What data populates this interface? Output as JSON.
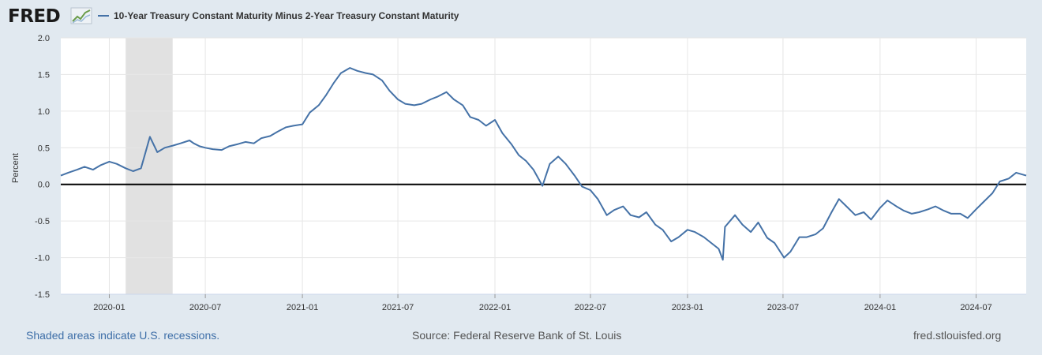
{
  "header": {
    "logo_text": "FRED",
    "logo_icon": "line-graph-icon",
    "legend_label": "10-Year Treasury Constant Maturity Minus 2-Year Treasury Constant Maturity"
  },
  "footer": {
    "recession_note": "Shaded areas indicate U.S. recessions.",
    "source": "Source: Federal Reserve Bank of St. Louis",
    "site": "fred.stlouisfed.org"
  },
  "colors": {
    "page_bg": "#e1e9f0",
    "plot_bg": "#ffffff",
    "series": "#4572a7",
    "recession": "#e1e1e1",
    "zero_line": "#000000",
    "grid": "#e6e6e6"
  },
  "chart_data": {
    "type": "line",
    "title": "",
    "xlabel": "",
    "ylabel": "Percent",
    "ylim": [
      -1.5,
      2.0
    ],
    "yticks": [
      "2.0",
      "1.5",
      "1.0",
      "0.5",
      "0.0",
      "-0.5",
      "-1.0",
      "-1.5"
    ],
    "xlim": [
      "2019-10-01",
      "2024-10-04"
    ],
    "xticks": [
      "2020-01",
      "2020-07",
      "2021-01",
      "2021-07",
      "2022-01",
      "2022-07",
      "2023-01",
      "2023-07",
      "2024-01",
      "2024-07"
    ],
    "grid": true,
    "legend_position": "top-left",
    "zero_line": 0,
    "recessions": [
      {
        "start": "2020-02-01",
        "end": "2020-04-30"
      }
    ],
    "series": [
      {
        "name": "10-Year Treasury Constant Maturity Minus 2-Year Treasury Constant Maturity",
        "x": [
          "2019-10-01",
          "2019-10-15",
          "2019-11-01",
          "2019-11-15",
          "2019-12-01",
          "2019-12-15",
          "2020-01-01",
          "2020-01-15",
          "2020-02-01",
          "2020-02-15",
          "2020-03-01",
          "2020-03-09",
          "2020-03-18",
          "2020-04-01",
          "2020-04-15",
          "2020-05-01",
          "2020-05-15",
          "2020-06-01",
          "2020-06-09",
          "2020-06-20",
          "2020-07-01",
          "2020-07-15",
          "2020-08-01",
          "2020-08-15",
          "2020-09-01",
          "2020-09-15",
          "2020-10-01",
          "2020-10-15",
          "2020-11-01",
          "2020-11-15",
          "2020-12-01",
          "2020-12-15",
          "2021-01-01",
          "2021-01-15",
          "2021-02-01",
          "2021-02-15",
          "2021-03-01",
          "2021-03-15",
          "2021-04-01",
          "2021-04-15",
          "2021-05-01",
          "2021-05-15",
          "2021-06-01",
          "2021-06-15",
          "2021-07-01",
          "2021-07-15",
          "2021-08-01",
          "2021-08-15",
          "2021-09-01",
          "2021-09-15",
          "2021-10-01",
          "2021-10-15",
          "2021-11-01",
          "2021-11-15",
          "2021-12-01",
          "2021-12-15",
          "2022-01-01",
          "2022-01-15",
          "2022-02-01",
          "2022-02-15",
          "2022-03-01",
          "2022-03-15",
          "2022-04-01",
          "2022-04-15",
          "2022-05-01",
          "2022-05-15",
          "2022-06-01",
          "2022-06-15",
          "2022-07-01",
          "2022-07-15",
          "2022-08-01",
          "2022-08-15",
          "2022-09-01",
          "2022-09-15",
          "2022-10-01",
          "2022-10-15",
          "2022-11-01",
          "2022-11-15",
          "2022-12-01",
          "2022-12-15",
          "2023-01-01",
          "2023-01-15",
          "2023-02-01",
          "2023-02-15",
          "2023-03-01",
          "2023-03-09",
          "2023-03-13",
          "2023-04-01",
          "2023-04-15",
          "2023-05-01",
          "2023-05-15",
          "2023-06-01",
          "2023-06-15",
          "2023-07-03",
          "2023-07-15",
          "2023-08-01",
          "2023-08-15",
          "2023-09-01",
          "2023-09-15",
          "2023-10-01",
          "2023-10-15",
          "2023-11-01",
          "2023-11-15",
          "2023-12-01",
          "2023-12-15",
          "2024-01-01",
          "2024-01-15",
          "2024-02-01",
          "2024-02-15",
          "2024-03-01",
          "2024-03-15",
          "2024-04-01",
          "2024-04-15",
          "2024-05-01",
          "2024-05-15",
          "2024-06-01",
          "2024-06-15",
          "2024-07-01",
          "2024-07-15",
          "2024-08-01",
          "2024-08-15",
          "2024-09-01",
          "2024-09-15",
          "2024-10-04"
        ],
        "values": [
          0.12,
          0.16,
          0.2,
          0.24,
          0.2,
          0.26,
          0.31,
          0.28,
          0.22,
          0.18,
          0.22,
          0.42,
          0.65,
          0.44,
          0.5,
          0.53,
          0.56,
          0.6,
          0.56,
          0.52,
          0.5,
          0.48,
          0.47,
          0.52,
          0.55,
          0.58,
          0.56,
          0.63,
          0.66,
          0.72,
          0.78,
          0.8,
          0.82,
          0.98,
          1.08,
          1.22,
          1.38,
          1.52,
          1.59,
          1.55,
          1.52,
          1.5,
          1.42,
          1.28,
          1.16,
          1.1,
          1.08,
          1.1,
          1.16,
          1.2,
          1.26,
          1.16,
          1.08,
          0.92,
          0.88,
          0.8,
          0.88,
          0.7,
          0.55,
          0.4,
          0.32,
          0.2,
          -0.02,
          0.28,
          0.38,
          0.28,
          0.12,
          -0.03,
          -0.08,
          -0.2,
          -0.42,
          -0.35,
          -0.3,
          -0.42,
          -0.45,
          -0.38,
          -0.55,
          -0.62,
          -0.78,
          -0.72,
          -0.62,
          -0.65,
          -0.72,
          -0.8,
          -0.88,
          -1.03,
          -0.58,
          -0.42,
          -0.55,
          -0.65,
          -0.52,
          -0.73,
          -0.8,
          -1.0,
          -0.92,
          -0.72,
          -0.72,
          -0.68,
          -0.6,
          -0.38,
          -0.2,
          -0.32,
          -0.42,
          -0.38,
          -0.48,
          -0.32,
          -0.22,
          -0.3,
          -0.36,
          -0.4,
          -0.38,
          -0.34,
          -0.3,
          -0.36,
          -0.4,
          -0.4,
          -0.46,
          -0.34,
          -0.24,
          -0.12,
          0.04,
          0.08,
          0.16,
          0.12
        ]
      }
    ]
  }
}
